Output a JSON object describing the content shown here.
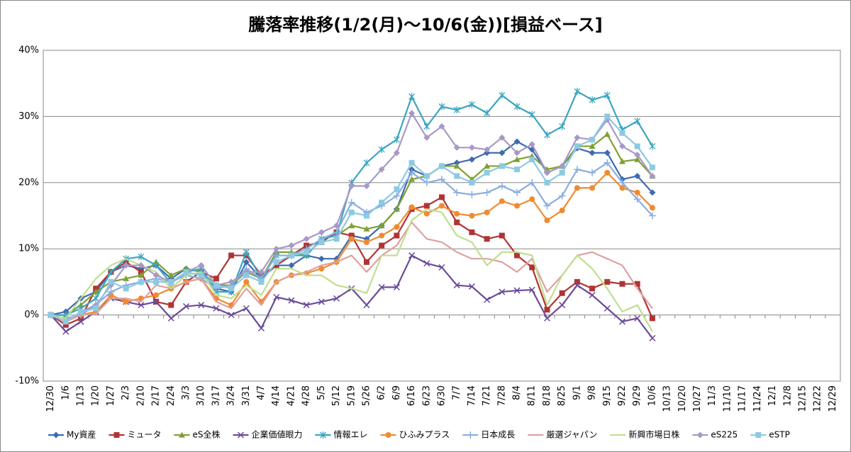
{
  "chart_data": {
    "type": "line",
    "title": "騰落率推移(1/2(月)～10/6(金))[損益ベース]",
    "categories": [
      "12/30",
      "1/6",
      "1/13",
      "1/20",
      "1/27",
      "2/3",
      "2/10",
      "2/17",
      "2/24",
      "3/3",
      "3/10",
      "3/17",
      "3/24",
      "3/31",
      "4/7",
      "4/14",
      "4/21",
      "4/28",
      "5/5",
      "5/12",
      "5/19",
      "5/26",
      "6/2",
      "6/9",
      "6/16",
      "6/23",
      "6/30",
      "7/7",
      "7/14",
      "7/21",
      "7/28",
      "8/4",
      "8/11",
      "8/18",
      "8/25",
      "9/1",
      "9/8",
      "9/15",
      "9/22",
      "9/29",
      "10/6",
      "10/13",
      "10/20",
      "10/27",
      "11/3",
      "11/10",
      "11/17",
      "11/24",
      "12/1",
      "12/8",
      "12/15",
      "12/22",
      "12/29"
    ],
    "ylim": [
      -10,
      40
    ],
    "yticks": [
      {
        "value": -10,
        "label": "-10%"
      },
      {
        "value": 0,
        "label": "0%"
      },
      {
        "value": 10,
        "label": "10%"
      },
      {
        "value": 20,
        "label": "20%"
      },
      {
        "value": 30,
        "label": "30%"
      },
      {
        "value": 40,
        "label": "40%"
      }
    ],
    "grid": true,
    "legend": "bottom",
    "series": [
      {
        "name": "My資産",
        "color": "#3c6bb0",
        "marker": "diamond",
        "values": [
          0,
          0.5,
          2.5,
          3.5,
          6.5,
          7.5,
          7,
          7.5,
          5.5,
          7,
          6.5,
          4,
          3.5,
          8,
          5.5,
          7.5,
          7.5,
          9,
          8.5,
          8.5,
          12,
          11.5,
          13.5,
          16,
          22,
          21,
          22.5,
          23,
          23.5,
          24.5,
          24.5,
          26.2,
          25,
          21.5,
          22.5,
          25.2,
          24.5,
          24.5,
          20.5,
          21,
          18.5,
          null,
          null,
          null,
          null,
          null,
          null,
          null,
          null,
          null,
          null,
          null,
          null
        ]
      },
      {
        "name": "ミュータ",
        "color": "#b03434",
        "marker": "square",
        "values": [
          0,
          -1.5,
          -0.5,
          4,
          6.5,
          8,
          6.5,
          2,
          1.5,
          5,
          6.5,
          5.5,
          9,
          9,
          6,
          7.5,
          9,
          10.5,
          11,
          12.5,
          12,
          8,
          10.5,
          12,
          16,
          16.5,
          17.8,
          14,
          12.5,
          11.5,
          12,
          9,
          7.2,
          0.8,
          3.3,
          5,
          4,
          5,
          4.7,
          4.7,
          -0.5,
          null,
          null,
          null,
          null,
          null,
          null,
          null,
          null,
          null,
          null,
          null,
          null
        ]
      },
      {
        "name": "eS全株",
        "color": "#7fa032",
        "marker": "triangle",
        "values": [
          0,
          0,
          1.5,
          3.5,
          5,
          5.5,
          6,
          8,
          6,
          7,
          6.5,
          4.5,
          4.5,
          6.5,
          5.5,
          9.5,
          9.5,
          9,
          11.5,
          12,
          13.5,
          13,
          13.5,
          16,
          20.5,
          21,
          22.5,
          22.5,
          20.5,
          22.5,
          22.5,
          23.5,
          24,
          22,
          22.5,
          25.5,
          25.5,
          27.3,
          23.2,
          23.5,
          21,
          null,
          null,
          null,
          null,
          null,
          null,
          null,
          null,
          null,
          null,
          null,
          null
        ]
      },
      {
        "name": "企業価値眼力",
        "color": "#6a4b9a",
        "marker": "x",
        "values": [
          0,
          -2.5,
          -1,
          0.5,
          2.5,
          2,
          1.5,
          2,
          -0.5,
          1.3,
          1.5,
          1,
          0,
          1,
          -2,
          2.7,
          2.2,
          1.5,
          2,
          2.5,
          4,
          1.5,
          4.2,
          4.2,
          9,
          7.8,
          7.2,
          4.5,
          4.3,
          2.3,
          3.5,
          3.7,
          3.8,
          -0.5,
          1.5,
          4.5,
          3,
          1,
          -1,
          -0.5,
          -3.5,
          null,
          null,
          null,
          null,
          null,
          null,
          null,
          null,
          null,
          null,
          null,
          null
        ]
      },
      {
        "name": "情報エレ",
        "color": "#3aa6c0",
        "marker": "star",
        "values": [
          0,
          0,
          1,
          2.5,
          6.5,
          8.5,
          8.8,
          7.5,
          4.8,
          6.5,
          7,
          3.5,
          3.5,
          9.5,
          5.5,
          9,
          9,
          9,
          11.5,
          12,
          20,
          23,
          25,
          26.5,
          33,
          28.5,
          31.5,
          31,
          31.8,
          30.5,
          33.2,
          31.5,
          30.3,
          27.2,
          28.5,
          33.8,
          32.5,
          33.2,
          28,
          29.3,
          25.5,
          null,
          null,
          null,
          null,
          null,
          null,
          null,
          null,
          null,
          null,
          null,
          null
        ]
      },
      {
        "name": "ひふみプラス",
        "color": "#f08a30",
        "marker": "circle",
        "values": [
          0,
          -1,
          0,
          0.5,
          3,
          2,
          2.5,
          3,
          4,
          5,
          5.5,
          2.5,
          1.5,
          5,
          2,
          5,
          6,
          6.3,
          7,
          8,
          11.5,
          11,
          12,
          13.3,
          16.3,
          15.3,
          16.5,
          15.3,
          15,
          15.5,
          17.2,
          16.5,
          17.5,
          14.3,
          15.8,
          19.2,
          19.2,
          21.5,
          19.2,
          18.5,
          16.2,
          null,
          null,
          null,
          null,
          null,
          null,
          null,
          null,
          null,
          null,
          null,
          null
        ]
      },
      {
        "name": "日本成長",
        "color": "#8aaee0",
        "marker": "plus",
        "values": [
          0,
          -0.5,
          0,
          1.5,
          3.5,
          4.5,
          5,
          5.5,
          5,
          6,
          5.5,
          4,
          4.5,
          7,
          5.5,
          9,
          9,
          10,
          11.5,
          12.5,
          17,
          15.5,
          16.5,
          18,
          21.5,
          20,
          20.5,
          18.5,
          18.2,
          18.5,
          19.5,
          18.5,
          20,
          16.5,
          18,
          22,
          21.5,
          23,
          20,
          17.5,
          15,
          null,
          null,
          null,
          null,
          null,
          null,
          null,
          null,
          null,
          null,
          null,
          null
        ]
      },
      {
        "name": "厳選ジャパン",
        "color": "#e0a0a0",
        "marker": "none",
        "values": [
          0,
          -1,
          0,
          0.2,
          2.5,
          2.5,
          2,
          4.5,
          4,
          5,
          5.5,
          2,
          1,
          4,
          1.5,
          5,
          6,
          6.5,
          7.5,
          8,
          9,
          6.5,
          9,
          10.5,
          14,
          11.5,
          11,
          9.5,
          8.5,
          8.5,
          8,
          6.5,
          8.5,
          3.5,
          6,
          9,
          9.5,
          8.5,
          7.5,
          4,
          1,
          null,
          null,
          null,
          null,
          null,
          null,
          null,
          null,
          null,
          null,
          null,
          null
        ]
      },
      {
        "name": "新興市場日株",
        "color": "#c0de8e",
        "marker": "none",
        "values": [
          0,
          -0.5,
          2.5,
          5.5,
          7.5,
          8.5,
          7.5,
          6.5,
          4,
          6,
          6.5,
          3,
          2.5,
          4.5,
          3,
          7,
          7,
          6,
          6,
          4.5,
          4,
          3.3,
          9,
          9,
          14.3,
          16,
          15.5,
          12,
          11,
          7.5,
          9.5,
          9.5,
          9,
          1.5,
          6,
          9,
          7,
          4,
          0.5,
          1.5,
          -2.5,
          null,
          null,
          null,
          null,
          null,
          null,
          null,
          null,
          null,
          null,
          null,
          null
        ]
      },
      {
        "name": "eS225",
        "color": "#a898c8",
        "marker": "diamond",
        "values": [
          0,
          -1,
          0.5,
          1.5,
          4.5,
          7.5,
          7.5,
          6,
          5,
          6.5,
          7.5,
          4.5,
          5,
          6.5,
          6.5,
          10,
          10.5,
          11.5,
          12.5,
          13.5,
          19.5,
          19.5,
          22,
          24.5,
          30.5,
          26.8,
          28.5,
          25.3,
          25.3,
          25,
          26.8,
          24.5,
          25.8,
          21.5,
          22.5,
          26.8,
          26.5,
          29.5,
          25.5,
          24.2,
          21,
          null,
          null,
          null,
          null,
          null,
          null,
          null,
          null,
          null,
          null,
          null,
          null
        ]
      },
      {
        "name": "eSTP",
        "color": "#8ccae2",
        "marker": "square",
        "values": [
          0,
          -1,
          0.5,
          1,
          5,
          4,
          5,
          5,
          5,
          6.5,
          6,
          4.5,
          4,
          6,
          5,
          8,
          9,
          9.5,
          11,
          11.5,
          15.5,
          15,
          17,
          19,
          23,
          21,
          22.5,
          21,
          20,
          21.5,
          22.5,
          22,
          23.5,
          20,
          21.5,
          25.5,
          26.5,
          30,
          27.5,
          25.5,
          22.3,
          null,
          null,
          null,
          null,
          null,
          null,
          null,
          null,
          null,
          null,
          null,
          null
        ]
      }
    ]
  }
}
